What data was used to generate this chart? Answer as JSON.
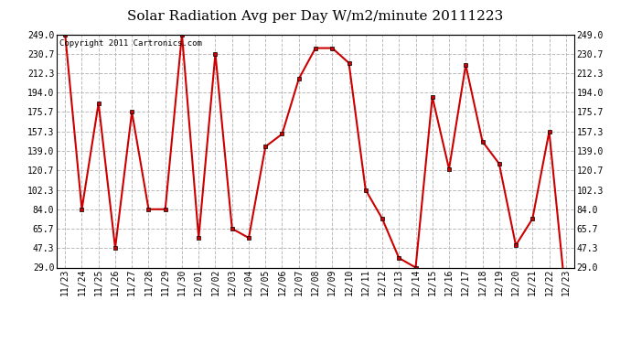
{
  "title": "Solar Radiation Avg per Day W/m2/minute 20111223",
  "copyright_text": "Copyright 2011 Cartronics.com",
  "dates": [
    "11/23",
    "11/24",
    "11/25",
    "11/26",
    "11/27",
    "11/28",
    "11/29",
    "11/30",
    "12/01",
    "12/02",
    "12/03",
    "12/04",
    "12/05",
    "12/06",
    "12/07",
    "12/08",
    "12/09",
    "12/10",
    "12/11",
    "12/12",
    "12/13",
    "12/14",
    "12/15",
    "12/16",
    "12/17",
    "12/18",
    "12/19",
    "12/20",
    "12/21",
    "12/22",
    "12/23"
  ],
  "values": [
    249.0,
    84.0,
    184.0,
    47.3,
    175.7,
    84.0,
    84.0,
    249.0,
    57.0,
    230.7,
    65.7,
    57.0,
    143.0,
    155.0,
    207.0,
    236.0,
    236.0,
    222.0,
    102.3,
    75.0,
    38.0,
    29.0,
    190.0,
    122.0,
    220.0,
    148.0,
    127.0,
    50.0,
    75.0,
    157.3,
    0.0
  ],
  "ylim_min": 29.0,
  "ylim_max": 249.0,
  "yticks": [
    29.0,
    47.3,
    65.7,
    84.0,
    102.3,
    120.7,
    139.0,
    157.3,
    175.7,
    194.0,
    212.3,
    230.7,
    249.0
  ],
  "ytick_labels": [
    "29.0",
    "47.3",
    "65.7",
    "84.0",
    "102.3",
    "120.7",
    "139.0",
    "157.3",
    "175.7",
    "194.0",
    "212.3",
    "230.7",
    "249.0"
  ],
  "line_color": "#cc0000",
  "marker_edge_color": "#000000",
  "bg_color": "#ffffff",
  "grid_color": "#bbbbbb",
  "title_fontsize": 11,
  "tick_fontsize": 7,
  "copyright_fontsize": 6.5,
  "fig_width": 6.9,
  "fig_height": 3.75,
  "dpi": 100
}
